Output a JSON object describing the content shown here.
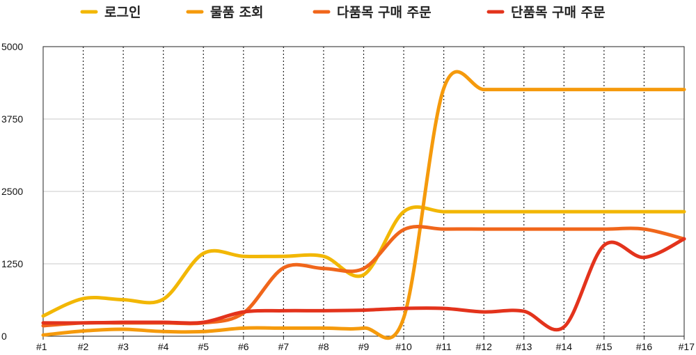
{
  "chart_data": {
    "type": "line",
    "title": "",
    "xlabel": "",
    "ylabel": "",
    "categories": [
      "#1",
      "#2",
      "#3",
      "#4",
      "#5",
      "#6",
      "#7",
      "#8",
      "#9",
      "#10",
      "#11",
      "#12",
      "#13",
      "#14",
      "#15",
      "#16",
      "#17"
    ],
    "ylim": [
      0,
      5000
    ],
    "yticks": [
      "0",
      "1250",
      "2500",
      "3750",
      "5000"
    ],
    "ytick_values": [
      0,
      1250,
      2500,
      3750,
      5000
    ],
    "grid": {
      "x": "dotted",
      "y": "solid"
    },
    "legend_position": "top",
    "series": [
      {
        "name": "로그인",
        "color": "#f2b705",
        "values": [
          350,
          650,
          630,
          640,
          1430,
          1380,
          1380,
          1380,
          1060,
          2150,
          2150,
          2150,
          2150,
          2150,
          2150,
          2150,
          2150
        ]
      },
      {
        "name": "물품 조회",
        "color": "#f59a0c",
        "values": [
          20,
          90,
          120,
          80,
          80,
          140,
          140,
          140,
          140,
          320,
          4280,
          4260,
          4260,
          4260,
          4260,
          4260,
          4260
        ]
      },
      {
        "name": "다품목 구매 주문",
        "color": "#f0661b",
        "values": [
          180,
          230,
          230,
          230,
          230,
          400,
          1180,
          1170,
          1170,
          1840,
          1850,
          1850,
          1850,
          1850,
          1850,
          1850,
          1680
        ]
      },
      {
        "name": "단품목 구매 주문",
        "color": "#e3331c",
        "values": [
          230,
          230,
          240,
          240,
          240,
          420,
          440,
          440,
          450,
          480,
          480,
          420,
          430,
          160,
          1570,
          1360,
          1680
        ]
      }
    ]
  }
}
